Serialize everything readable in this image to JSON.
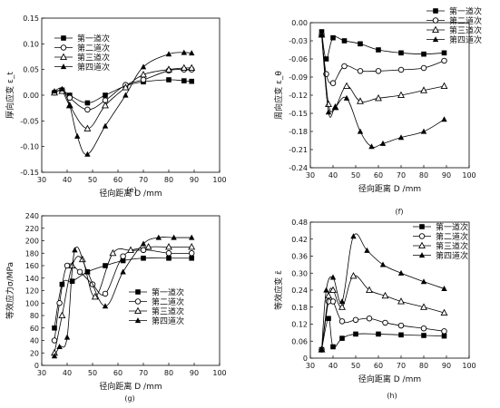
{
  "chart_data": [
    {
      "id": "e",
      "type": "line",
      "panel_label": "(e)",
      "xlabel": "径向距离  D /mm",
      "ylabel": "厚向应变 ε_t",
      "xlim": [
        30,
        100
      ],
      "ylim": [
        -0.15,
        0.15
      ],
      "xticks": [
        30,
        40,
        50,
        60,
        70,
        80,
        90,
        100
      ],
      "yticks": [
        -0.15,
        -0.1,
        -0.05,
        0.0,
        0.05,
        0.1,
        0.15
      ],
      "ytick_labels": [
        "-0.15",
        "-0.10",
        "-0.05",
        "0.00",
        "0.05",
        "0.10",
        "0.15"
      ],
      "legend_position": "top-left",
      "series": [
        {
          "name": "第一道次",
          "marker": "square",
          "x": [
            35,
            38,
            41,
            48,
            55,
            63,
            70,
            80,
            86,
            89
          ],
          "y": [
            0.005,
            0.01,
            0.0,
            -0.015,
            0.0,
            0.018,
            0.026,
            0.03,
            0.028,
            0.027
          ]
        },
        {
          "name": "第二道次",
          "marker": "circle",
          "x": [
            35,
            38,
            41,
            48,
            55,
            63,
            70,
            80,
            86,
            89
          ],
          "y": [
            0.005,
            0.01,
            -0.005,
            -0.028,
            -0.01,
            0.02,
            0.03,
            0.048,
            0.05,
            0.05
          ]
        },
        {
          "name": "第三道次",
          "marker": "triangle-open",
          "x": [
            35,
            38,
            41,
            48,
            55,
            63,
            70,
            80,
            86,
            89
          ],
          "y": [
            0.005,
            0.008,
            -0.02,
            -0.065,
            -0.02,
            0.015,
            0.04,
            0.05,
            0.053,
            0.053
          ]
        },
        {
          "name": "第四道次",
          "marker": "triangle",
          "x": [
            35,
            38,
            41,
            44,
            48,
            55,
            63,
            70,
            80,
            86,
            89
          ],
          "y": [
            0.008,
            0.012,
            -0.02,
            -0.08,
            -0.115,
            -0.06,
            0.0,
            0.055,
            0.08,
            0.083,
            0.082
          ]
        }
      ]
    },
    {
      "id": "f",
      "type": "line",
      "panel_label": "(f)",
      "xlabel": "径向距离  D /mm",
      "ylabel": "周向应变 ε_θ",
      "xlim": [
        30,
        100
      ],
      "ylim": [
        -0.24,
        0.0
      ],
      "xticks": [
        30,
        40,
        50,
        60,
        70,
        80,
        90,
        100
      ],
      "yticks": [
        0.0,
        -0.03,
        -0.06,
        -0.09,
        -0.12,
        -0.15,
        -0.18,
        -0.21,
        -0.24
      ],
      "ytick_labels": [
        "0.00",
        "-0.03",
        "-0.06",
        "-0.09",
        "-0.12",
        "-0.15",
        "-0.18",
        "-0.21",
        "-0.24"
      ],
      "legend_position": "top-right",
      "series": [
        {
          "name": "第一道次",
          "marker": "square",
          "x": [
            35,
            37,
            40,
            45,
            52,
            60,
            70,
            80,
            89
          ],
          "y": [
            -0.015,
            -0.06,
            -0.025,
            -0.03,
            -0.035,
            -0.045,
            -0.05,
            -0.052,
            -0.05
          ]
        },
        {
          "name": "第二道次",
          "marker": "circle",
          "x": [
            35,
            37,
            40,
            45,
            52,
            60,
            70,
            80,
            89
          ],
          "y": [
            -0.02,
            -0.085,
            -0.1,
            -0.072,
            -0.08,
            -0.08,
            -0.078,
            -0.075,
            -0.063
          ]
        },
        {
          "name": "第三道次",
          "marker": "triangle-open",
          "x": [
            35,
            38,
            41,
            46,
            52,
            60,
            70,
            80,
            89
          ],
          "y": [
            -0.02,
            -0.135,
            -0.14,
            -0.105,
            -0.13,
            -0.125,
            -0.12,
            -0.112,
            -0.105
          ]
        },
        {
          "name": "第四道次",
          "marker": "triangle",
          "x": [
            35,
            38,
            41,
            46,
            52,
            57,
            62,
            70,
            80,
            89
          ],
          "y": [
            -0.02,
            -0.148,
            -0.14,
            -0.125,
            -0.18,
            -0.205,
            -0.2,
            -0.19,
            -0.18,
            -0.16
          ]
        }
      ]
    },
    {
      "id": "g",
      "type": "line",
      "panel_label": "(g)",
      "xlabel": "径向距离  D /mm",
      "ylabel": "等效应力σ/MPa",
      "xlim": [
        30,
        100
      ],
      "ylim": [
        0,
        240
      ],
      "xticks": [
        30,
        40,
        50,
        60,
        70,
        80,
        90,
        100
      ],
      "yticks": [
        0,
        20,
        40,
        60,
        80,
        100,
        120,
        140,
        160,
        180,
        200,
        220,
        240
      ],
      "ytick_labels": [
        "0",
        "20",
        "40",
        "60",
        "80",
        "100",
        "120",
        "140",
        "160",
        "180",
        "200",
        "220",
        "240"
      ],
      "legend_position": "bottom-right",
      "series": [
        {
          "name": "第一道次",
          "marker": "square",
          "x": [
            35,
            38,
            42,
            48,
            55,
            62,
            70,
            80,
            89
          ],
          "y": [
            60,
            130,
            135,
            150,
            160,
            168,
            172,
            172,
            172
          ]
        },
        {
          "name": "第二道次",
          "marker": "circle",
          "x": [
            35,
            37,
            40,
            45,
            50,
            55,
            62,
            70,
            80,
            89
          ],
          "y": [
            40,
            100,
            160,
            150,
            130,
            115,
            175,
            185,
            180,
            180
          ]
        },
        {
          "name": "第三道次",
          "marker": "triangle-open",
          "x": [
            35,
            38,
            42,
            46,
            51,
            58,
            65,
            72,
            80,
            89
          ],
          "y": [
            20,
            80,
            160,
            170,
            110,
            180,
            185,
            190,
            190,
            190
          ]
        },
        {
          "name": "第四道次",
          "marker": "triangle",
          "x": [
            35,
            37,
            40,
            43,
            48,
            55,
            62,
            70,
            76,
            82,
            89
          ],
          "y": [
            15,
            30,
            45,
            185,
            150,
            95,
            150,
            195,
            205,
            205,
            205
          ]
        }
      ]
    },
    {
      "id": "h",
      "type": "line",
      "panel_label": "(h)",
      "xlabel": "径向距离  D /mm",
      "ylabel": "等效应变 ε̄",
      "xlim": [
        30,
        100
      ],
      "ylim": [
        0,
        0.48
      ],
      "xticks": [
        30,
        40,
        50,
        60,
        70,
        80,
        90,
        100
      ],
      "yticks": [
        0,
        0.06,
        0.12,
        0.18,
        0.24,
        0.3,
        0.36,
        0.42,
        0.48
      ],
      "ytick_labels": [
        "0",
        "0.06",
        "0.12",
        "0.18",
        "0.24",
        "0.30",
        "0.36",
        "0.42",
        "0.48"
      ],
      "legend_position": "top-right",
      "series": [
        {
          "name": "第一道次",
          "marker": "square",
          "x": [
            35,
            38,
            40,
            44,
            50,
            60,
            70,
            80,
            89
          ],
          "y": [
            0.03,
            0.14,
            0.04,
            0.07,
            0.085,
            0.085,
            0.082,
            0.08,
            0.078
          ]
        },
        {
          "name": "第二道次",
          "marker": "circle",
          "x": [
            35,
            38,
            40,
            44,
            50,
            56,
            63,
            70,
            80,
            89
          ],
          "y": [
            0.03,
            0.2,
            0.2,
            0.13,
            0.135,
            0.14,
            0.125,
            0.115,
            0.105,
            0.095
          ]
        },
        {
          "name": "第三道次",
          "marker": "triangle-open",
          "x": [
            35,
            38,
            40,
            44,
            49,
            56,
            63,
            70,
            80,
            89
          ],
          "y": [
            0.03,
            0.22,
            0.24,
            0.18,
            0.29,
            0.24,
            0.22,
            0.2,
            0.18,
            0.16
          ]
        },
        {
          "name": "第四道次",
          "marker": "triangle",
          "x": [
            35,
            37,
            40,
            44,
            49,
            55,
            62,
            70,
            80,
            89
          ],
          "y": [
            0.03,
            0.24,
            0.285,
            0.2,
            0.43,
            0.38,
            0.33,
            0.3,
            0.27,
            0.245
          ]
        }
      ]
    }
  ]
}
